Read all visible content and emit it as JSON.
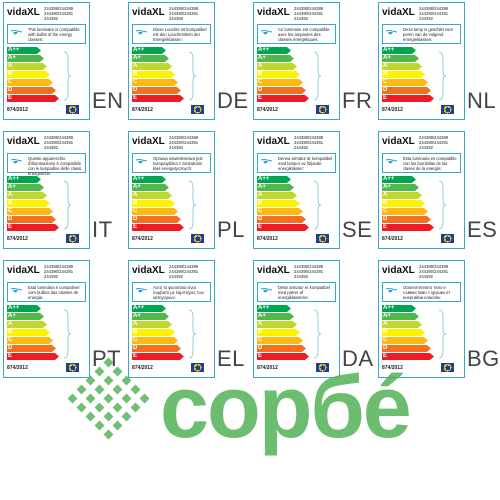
{
  "brand": "vidaXL",
  "codes": [
    "244388/244389",
    "244390/244391",
    "244392"
  ],
  "regulation": "874/2012",
  "energy_classes": [
    "A++",
    "A+",
    "A",
    "B",
    "C",
    "D",
    "E"
  ],
  "class_colors": [
    "#00a550",
    "#50b848",
    "#bfd730",
    "#fff200",
    "#fdb913",
    "#f37021",
    "#ed1c24"
  ],
  "labels": [
    {
      "lang": "EN",
      "text": "This luminaire is compatible with bulbs of the energy classes:"
    },
    {
      "lang": "DE",
      "text": "Diese Leuchte ist kompatibel mit den Leuchtmitteln der Energieklassen:"
    },
    {
      "lang": "FR",
      "text": "Ce luminaire est compatible avec les ampoules des classes énergétiques:"
    },
    {
      "lang": "NL",
      "text": "Deze lamp is geschikt voor peren van de volgend energieklassen:"
    },
    {
      "lang": "IT",
      "text": "Questo apparecchio d'illuminazione è compatibile con le lampadine delle classi energetiche:"
    },
    {
      "lang": "PL",
      "text": "Oprawa oswietleniowa jest kompatybilna z żarówkami klas energetycznych:"
    },
    {
      "lang": "SE",
      "text": "Denna armatur är kompatibel med lampor av följande energiklasser:"
    },
    {
      "lang": "ES",
      "text": "Esta luminaria es compatible con las bombillas de las clases de la energía:"
    },
    {
      "lang": "PT",
      "text": "Esta luminária é compatível com bulbos das classes de energia:"
    },
    {
      "lang": "EL",
      "text": "Αυτό το φωτιστικό είναι συμβατό με λαμπτήρες των κατηγοριών:"
    },
    {
      "lang": "DA",
      "text": "Dette armatur er kompatibel med pærer af energiklasserne:"
    },
    {
      "lang": "BG",
      "text": "Осветителното тяло е съвместимо с крушки от енергийни класове:"
    }
  ],
  "watermark": "сорбé",
  "icons": {
    "lamp": "lamp-icon",
    "eu": "eu-flag-icon",
    "brace": "brace-icon"
  }
}
